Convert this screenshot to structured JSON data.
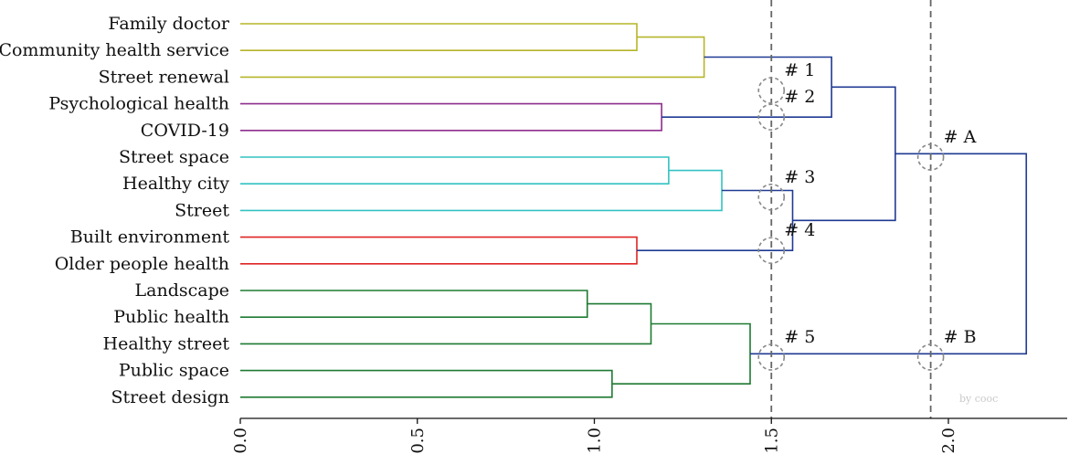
{
  "chart_data": {
    "type": "dendrogram",
    "xlim": [
      0,
      2.3
    ],
    "ticks": [
      0.0,
      0.5,
      1.0,
      1.5,
      2.0
    ],
    "tick_labels": [
      "0.0",
      "0.5",
      "1.0",
      "1.5",
      "2.0"
    ],
    "leaves": [
      "Family doctor",
      "Community health service",
      "Street renewal",
      "Psychological health",
      "COVID-19",
      "Street space",
      "Healthy city",
      "Street",
      "Built environment",
      "Older people health",
      "Landscape",
      "Public health",
      "Healthy street",
      "Public space",
      "Street design"
    ],
    "cluster_colors": {
      "yellow": "#b5b52a",
      "purple": "#8e2d8e",
      "cyan": "#33c2c2",
      "red": "#e02424",
      "green": "#1e7a32",
      "navy": "#1f3a93"
    },
    "merges": [
      {
        "id": "m1",
        "left": 0,
        "right": 1,
        "height": 1.12,
        "color": "yellow"
      },
      {
        "id": "m2",
        "left": "m1",
        "right": 2,
        "height": 1.31,
        "color": "yellow"
      },
      {
        "id": "m3",
        "left": 3,
        "right": 4,
        "height": 1.19,
        "color": "purple"
      },
      {
        "id": "m4",
        "left": "m2",
        "right": "m3",
        "height": 1.67,
        "color": "navy"
      },
      {
        "id": "m5",
        "left": 5,
        "right": 6,
        "height": 1.21,
        "color": "cyan"
      },
      {
        "id": "m6",
        "left": "m5",
        "right": 7,
        "height": 1.36,
        "color": "cyan"
      },
      {
        "id": "m7",
        "left": 8,
        "right": 9,
        "height": 1.12,
        "color": "red"
      },
      {
        "id": "m8",
        "left": "m6",
        "right": "m7",
        "height": 1.56,
        "color": "navy"
      },
      {
        "id": "m9",
        "left": "m4",
        "right": "m8",
        "height": 1.85,
        "color": "navy"
      },
      {
        "id": "m10",
        "left": 10,
        "right": 11,
        "height": 0.98,
        "color": "green"
      },
      {
        "id": "m11",
        "left": "m10",
        "right": 12,
        "height": 1.16,
        "color": "green"
      },
      {
        "id": "m12",
        "left": 13,
        "right": 14,
        "height": 1.05,
        "color": "green"
      },
      {
        "id": "m13",
        "left": "m11",
        "right": "m12",
        "height": 1.44,
        "color": "green"
      },
      {
        "id": "m14",
        "left": "m9",
        "right": "m13",
        "height": 2.22,
        "color": "navy"
      }
    ],
    "cut_lines": [
      1.5,
      1.95
    ],
    "markers": [
      {
        "label": "# 1",
        "x": 1.5,
        "between": [
          2,
          3
        ]
      },
      {
        "label": "# 2",
        "x": 1.5,
        "between": [
          3,
          4
        ]
      },
      {
        "label": "# 3",
        "x": 1.5,
        "between": [
          6,
          7
        ]
      },
      {
        "label": "# 4",
        "x": 1.5,
        "between": [
          8,
          9
        ]
      },
      {
        "label": "# 5",
        "x": 1.5,
        "between": [
          12,
          13
        ]
      },
      {
        "label": "# A",
        "x": 1.95,
        "between": [
          5,
          5
        ]
      },
      {
        "label": "# B",
        "x": 1.95,
        "between": [
          12,
          13
        ]
      }
    ],
    "watermark": "by cooc"
  }
}
